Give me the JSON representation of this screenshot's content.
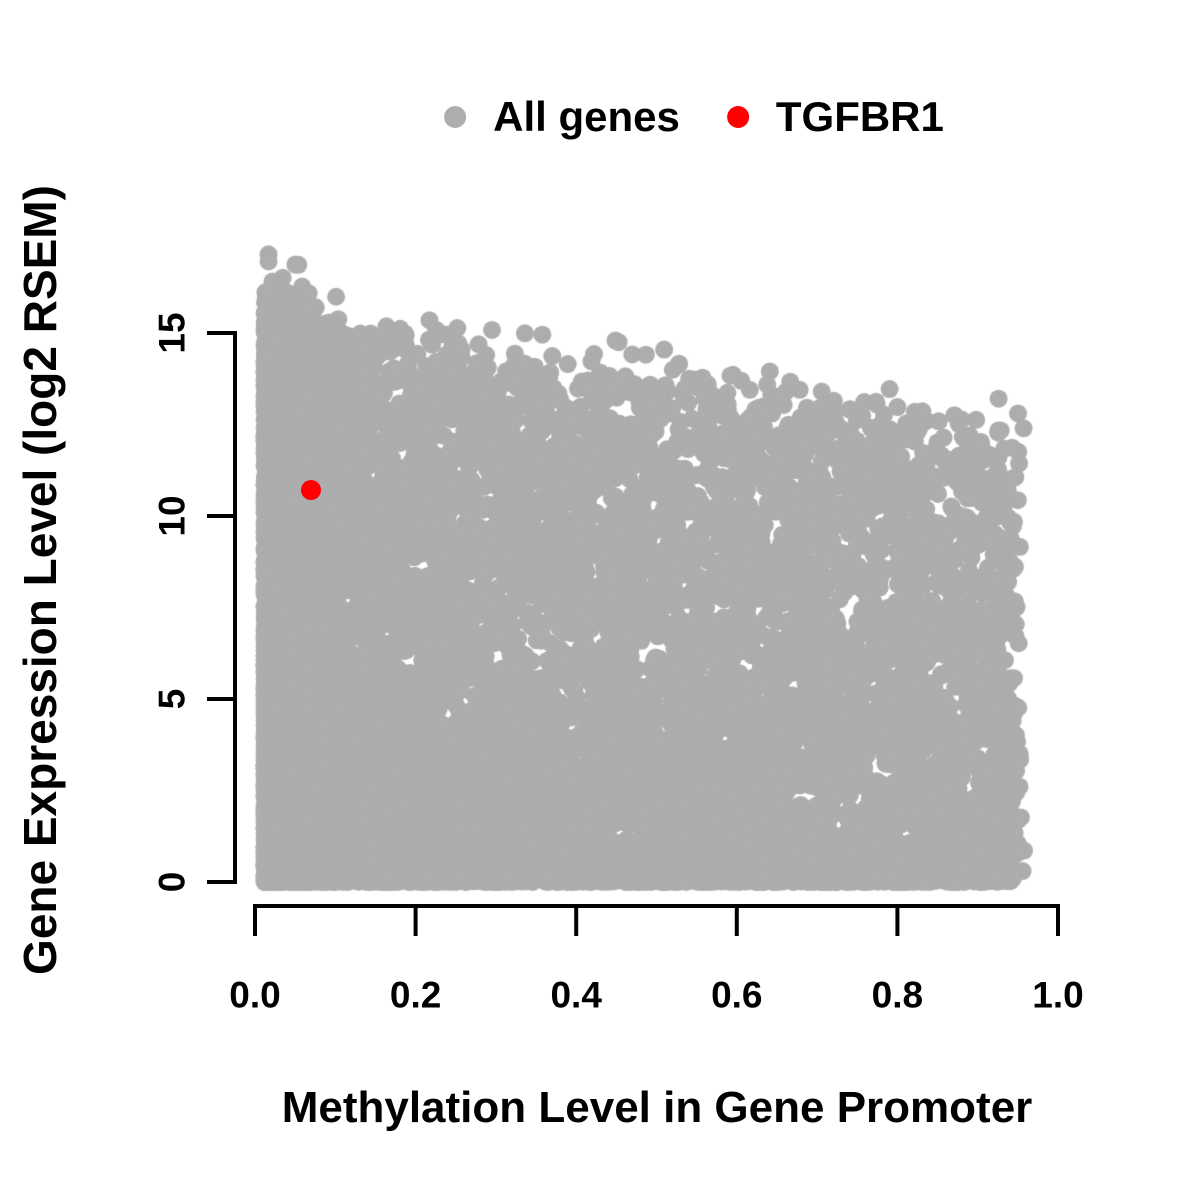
{
  "figure": {
    "background": "#FFFFFF",
    "text_color": "#000000",
    "legend": {
      "position": "top-center",
      "items": [
        {
          "label": "All genes",
          "color": "#ADADAD",
          "icon": "dot"
        },
        {
          "label": "TGFBR1",
          "color": "#FF0000",
          "icon": "dot"
        }
      ]
    },
    "x_axis": {
      "title": "Methylation Level in Gene Promoter",
      "tick_labels": [
        "0.0",
        "0.2",
        "0.4",
        "0.6",
        "0.8",
        "1.0"
      ],
      "tick_values": [
        0,
        0.2,
        0.4,
        0.6,
        0.8,
        1.0
      ],
      "range": [
        0,
        1
      ]
    },
    "y_axis": {
      "title": "Gene Expression Level (log2 RSEM)",
      "tick_labels": [
        "0",
        "5",
        "10",
        "15"
      ],
      "tick_values": [
        0,
        5,
        10,
        15
      ],
      "range": [
        0,
        15
      ]
    }
  },
  "chart_data": {
    "type": "scatter",
    "title": "",
    "xlabel": "Methylation Level in Gene Promoter",
    "ylabel": "Gene Expression Level (log2 RSEM)",
    "xlim": [
      0,
      1
    ],
    "ylim": [
      0,
      15
    ],
    "grid": false,
    "legend_position": "top",
    "x_ticks": [
      0,
      0.2,
      0.4,
      0.6,
      0.8,
      1.0
    ],
    "y_ticks": [
      0,
      5,
      10,
      15
    ],
    "series": [
      {
        "name": "All genes",
        "color": "#ADADAD",
        "marker": "circle",
        "marker_radius_px": 9,
        "summary": "Dense cloud of ~14000 genes; methylation x from 0.01 to 0.97, expression y from 0 to ~17; upper envelope declines from ~15.5 at x=0 to ~12.2 at x=0.95; density highest at low methylation; solid band of zero-expression genes along y=0",
        "generator": {
          "seed": 20240,
          "n": 14000,
          "components": [
            {
              "weight": 0.3,
              "x_base": 0.015,
              "x_scale": 0.085,
              "x_power": 2.2,
              "y_mode": "envelope"
            },
            {
              "weight": 0.38,
              "x_base": 0.015,
              "x_scale": 0.935,
              "x_power": 1.7,
              "y_mode": "envelope"
            },
            {
              "weight": 0.24,
              "x_base": 0.015,
              "x_scale": 0.935,
              "x_power": 1.0,
              "y_mode": "envelope"
            },
            {
              "weight": 0.08,
              "x_base": 0.015,
              "x_scale": 0.915,
              "x_power": 1.1,
              "y_mode": "zero",
              "y_sd": 0.12
            }
          ],
          "envelope": {
            "intercept": 15.45,
            "slope": -3.5,
            "noise_sd": 0.5,
            "y_power": 1.42
          },
          "outliers": {
            "x_max": 0.12,
            "prob": 0.003,
            "extra_max": 1.7
          },
          "x_clip": [
            0.012,
            0.97
          ],
          "y_clip": [
            0,
            17.2
          ]
        }
      },
      {
        "name": "TGFBR1",
        "color": "#FF0000",
        "marker": "circle",
        "marker_radius_px": 10,
        "points": [
          [
            0.07,
            10.7
          ]
        ]
      }
    ]
  }
}
